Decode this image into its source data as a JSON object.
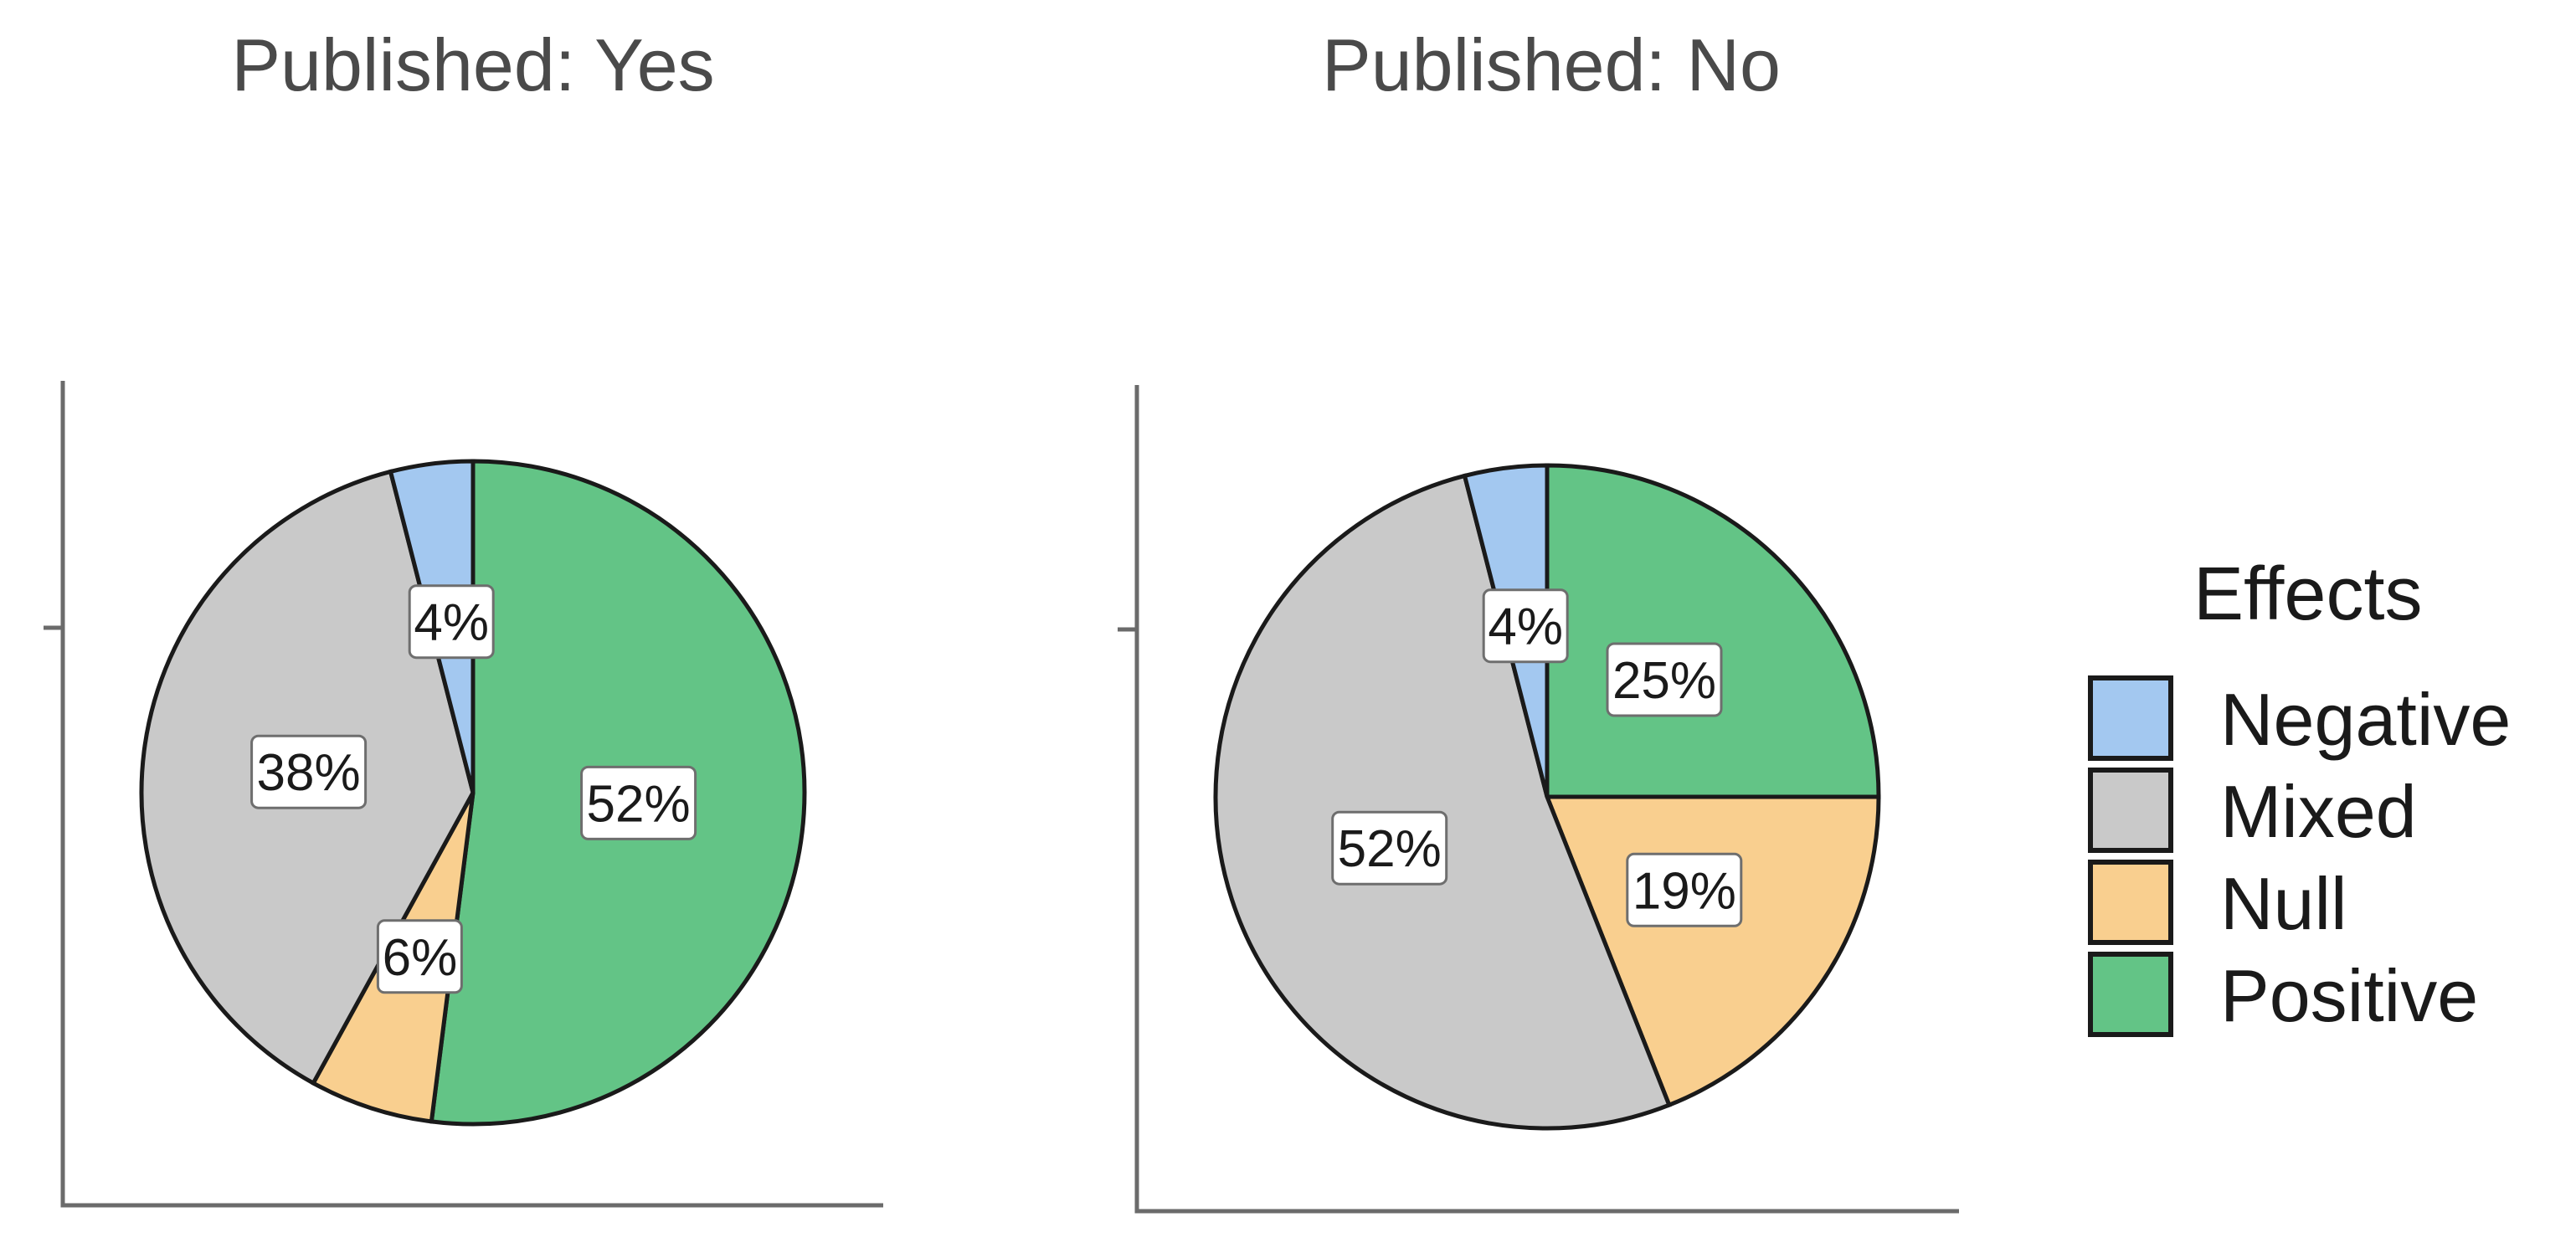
{
  "chart_data": {
    "type": "pie",
    "legend": {
      "title": "Effects",
      "position": "right",
      "items": [
        {
          "label": "Negative",
          "color": "#a3c8f0"
        },
        {
          "label": "Mixed",
          "color": "#c9c9c9"
        },
        {
          "label": "Null",
          "color": "#f9cf8f"
        },
        {
          "label": "Positive",
          "color": "#63c486"
        }
      ]
    },
    "panels": [
      {
        "title": "Published: Yes",
        "slices": [
          {
            "category": "Positive",
            "value": 52,
            "label": "52%"
          },
          {
            "category": "Null",
            "value": 6,
            "label": "6%"
          },
          {
            "category": "Mixed",
            "value": 38,
            "label": "38%"
          },
          {
            "category": "Negative",
            "value": 4,
            "label": "4%"
          }
        ]
      },
      {
        "title": "Published: No",
        "slices": [
          {
            "category": "Positive",
            "value": 25,
            "label": "25%"
          },
          {
            "category": "Null",
            "value": 19,
            "label": "19%"
          },
          {
            "category": "Mixed",
            "value": 52,
            "label": "52%"
          },
          {
            "category": "Negative",
            "value": 4,
            "label": "4%"
          }
        ]
      }
    ]
  }
}
